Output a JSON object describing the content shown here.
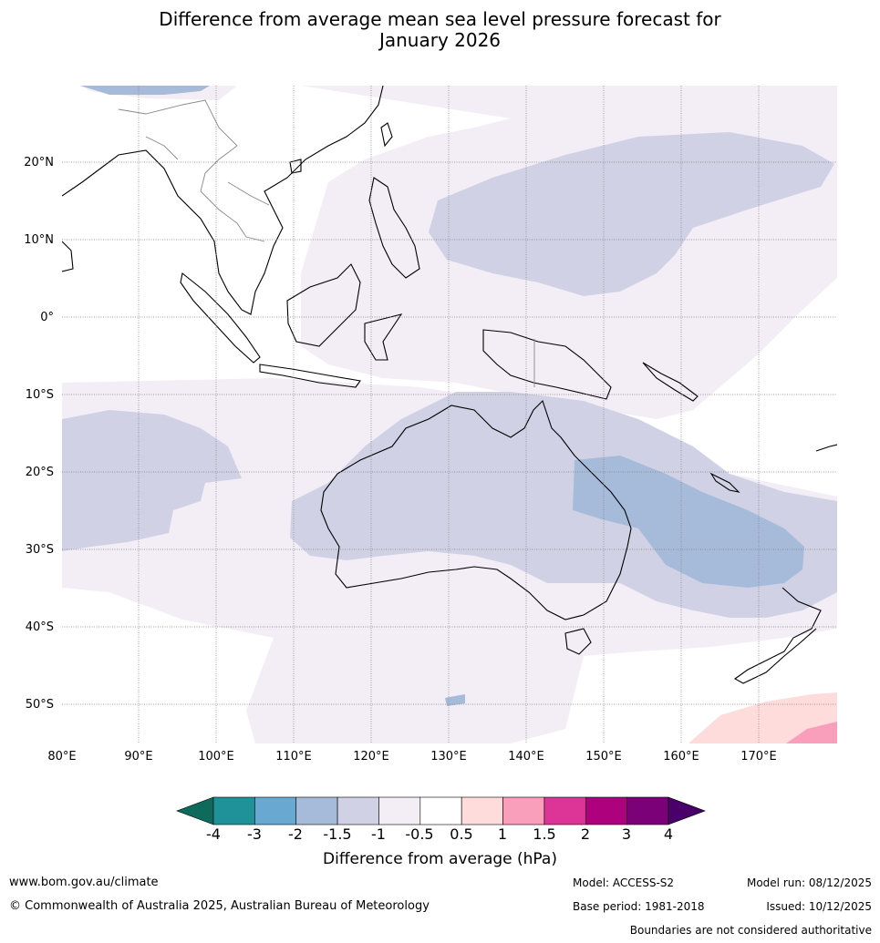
{
  "title_line1": "Difference from average mean sea level pressure forecast for",
  "title_line2": "January 2026",
  "map": {
    "lat_labels": [
      "20°N",
      "10°N",
      "0°",
      "10°S",
      "20°S",
      "30°S",
      "40°S",
      "50°S"
    ],
    "lon_labels": [
      "80°E",
      "90°E",
      "100°E",
      "110°E",
      "120°E",
      "130°E",
      "140°E",
      "150°E",
      "160°E",
      "170°E"
    ],
    "anomaly_colors": {
      "neg_0_5_to_neg_1": "#f3edf6",
      "neg_1_to_neg_1_5": "#d0d1e5",
      "neg_1_5_to_neg_2": "#a6bbd9",
      "pos_0_5_to_1": "#fedcdc",
      "pos_1_to_1_5": "#f99fbb"
    }
  },
  "colorbar": {
    "ticks": [
      "-4",
      "-3",
      "-2",
      "-1.5",
      "-1",
      "-0.5",
      "0.5",
      "1",
      "1.5",
      "2",
      "3",
      "4"
    ],
    "colors": [
      "#0e6b5c",
      "#1f9199",
      "#69a9d1",
      "#a6bbd9",
      "#d0d1e5",
      "#f3edf6",
      "#ffffff",
      "#fedcdc",
      "#f99fbb",
      "#dd3497",
      "#ae017e",
      "#7a0177",
      "#49006a"
    ],
    "label": "Difference from average (hPa)"
  },
  "footer": {
    "website": "www.bom.gov.au/climate",
    "copyright": "© Commonwealth of Australia 2025, Australian Bureau of Meteorology",
    "model": "Model: ACCESS-S2",
    "base_period": "Base period: 1981-2018",
    "model_run": "Model run: 08/12/2025",
    "issued": "Issued: 10/12/2025",
    "disclaimer": "Boundaries are not considered authoritative"
  }
}
